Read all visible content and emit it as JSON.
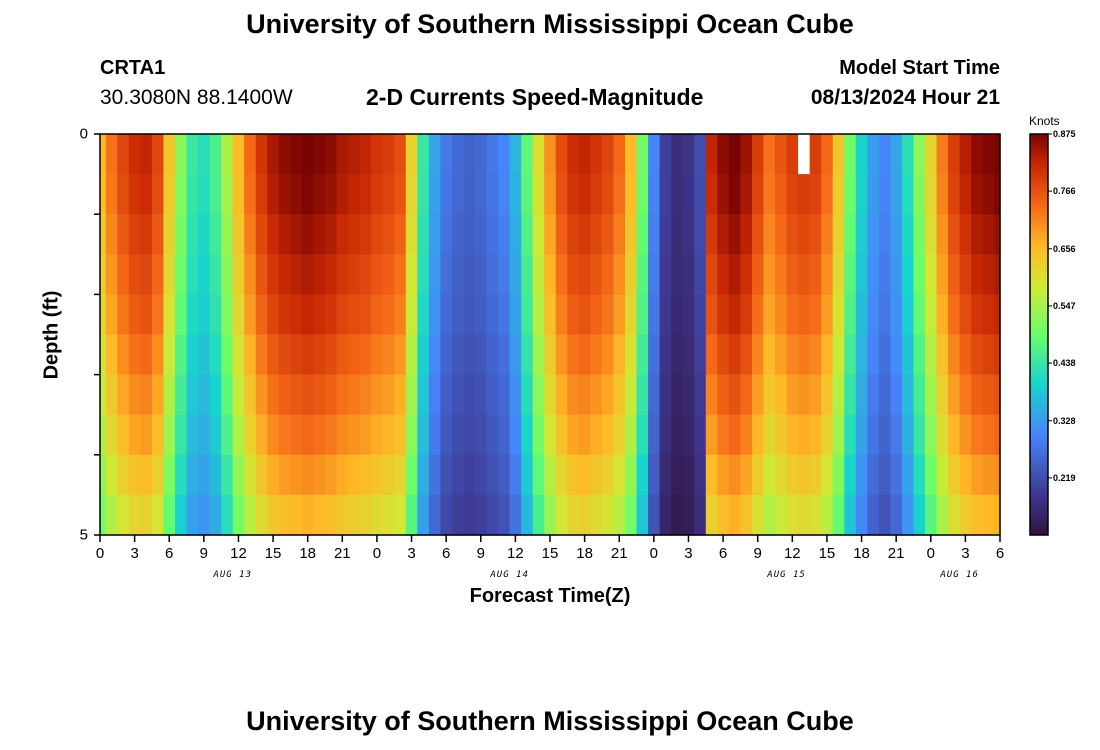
{
  "page_title_top": "University of Southern Mississippi Ocean Cube",
  "page_title_bottom": "University of Southern Mississippi Ocean Cube",
  "station": {
    "name": "CRTA1",
    "coordinates": "30.3080N  88.1400W"
  },
  "model_start": {
    "label": "Model Start Time",
    "value": "08/13/2024 Hour 21"
  },
  "chart_data": {
    "type": "heatmap",
    "title": "2-D Currents Speed-Magnitude",
    "xlabel": "Forecast Time(Z)",
    "ylabel": "Depth (ft)",
    "ylim": [
      0,
      5
    ],
    "y_ticks": [
      "0",
      "5"
    ],
    "y_minor_ticks": [
      1,
      2,
      3,
      4
    ],
    "x_range_hours": [
      0,
      78
    ],
    "x_ticks": [
      "0",
      "3",
      "6",
      "9",
      "12",
      "15",
      "18",
      "21",
      "0",
      "3",
      "6",
      "9",
      "12",
      "15",
      "18",
      "21",
      "0",
      "3",
      "6",
      "9",
      "12",
      "15",
      "18",
      "21",
      "0",
      "3",
      "6"
    ],
    "day_labels": [
      {
        "label": "AUG 13",
        "hour": 11.5
      },
      {
        "label": "AUG 14",
        "hour": 35.5
      },
      {
        "label": "AUG 15",
        "hour": 59.5
      },
      {
        "label": "AUG 16",
        "hour": 74.5
      }
    ],
    "depth_layers": [
      0.25,
      0.75,
      1.25,
      1.75,
      2.25,
      2.75,
      3.25,
      3.75,
      4.25,
      4.75
    ],
    "layer_attenuation": [
      1.0,
      0.99,
      0.97,
      0.95,
      0.93,
      0.9,
      0.87,
      0.84,
      0.8,
      0.76
    ],
    "hours_step": 1,
    "surface_speed_knots": [
      0.66,
      0.73,
      0.78,
      0.81,
      0.82,
      0.78,
      0.64,
      0.52,
      0.44,
      0.42,
      0.46,
      0.55,
      0.66,
      0.74,
      0.8,
      0.84,
      0.86,
      0.87,
      0.88,
      0.87,
      0.86,
      0.84,
      0.83,
      0.82,
      0.8,
      0.79,
      0.77,
      0.62,
      0.44,
      0.34,
      0.28,
      0.26,
      0.25,
      0.26,
      0.28,
      0.3,
      0.36,
      0.48,
      0.6,
      0.7,
      0.77,
      0.81,
      0.82,
      0.8,
      0.78,
      0.74,
      0.66,
      0.5,
      0.3,
      0.2,
      0.17,
      0.18,
      0.22,
      0.82,
      0.86,
      0.88,
      0.85,
      0.79,
      0.73,
      0.76,
      0.79,
      0.8,
      0.79,
      0.74,
      0.64,
      0.5,
      0.4,
      0.33,
      0.3,
      0.34,
      0.42,
      0.52,
      0.62,
      0.72,
      0.79,
      0.83,
      0.86,
      0.87,
      0.88
    ],
    "colorbar": {
      "unit": "Knots",
      "min": 0.11,
      "max": 0.875,
      "tick_labels": [
        "0.875",
        "0.766",
        "0.656",
        "0.547",
        "0.438",
        "0.328",
        "0.219"
      ],
      "tick_values": [
        0.875,
        0.766,
        0.656,
        0.547,
        0.438,
        0.328,
        0.219
      ]
    },
    "missing_cell": {
      "hour": 61,
      "layer": 0
    }
  }
}
